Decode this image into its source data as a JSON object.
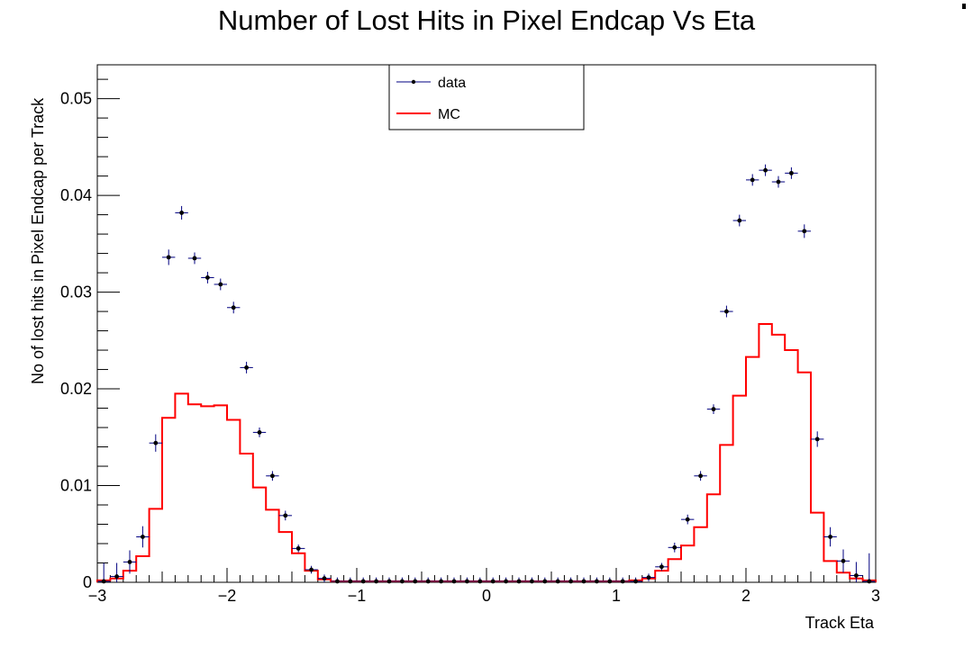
{
  "chart_data": {
    "type": "line",
    "title": "Number of Lost Hits in Pixel Endcap Vs Eta",
    "xlabel": "Track Eta",
    "ylabel": "No of lost hits in Pixel Endcap per Track",
    "xlim": [
      -3,
      3
    ],
    "ylim": [
      0,
      0.0535
    ],
    "xticks": [
      -3,
      -2,
      -1,
      0,
      1,
      2,
      3
    ],
    "xtick_labels": [
      "−3",
      "−2",
      "−1",
      "0",
      "1",
      "2",
      "3"
    ],
    "yticks": [
      0,
      0.01,
      0.02,
      0.03,
      0.04,
      0.05
    ],
    "ytick_labels": [
      "0",
      "0.01",
      "0.02",
      "0.03",
      "0.04",
      "0.05"
    ],
    "grid": false,
    "legend_position": "top-center",
    "bin_width": 0.1,
    "bin_centers": [
      -2.95,
      -2.85,
      -2.75,
      -2.65,
      -2.55,
      -2.45,
      -2.35,
      -2.25,
      -2.15,
      -2.05,
      -1.95,
      -1.85,
      -1.75,
      -1.65,
      -1.55,
      -1.45,
      -1.35,
      -1.25,
      -1.15,
      -1.05,
      -0.95,
      -0.85,
      -0.75,
      -0.65,
      -0.55,
      -0.45,
      -0.35,
      -0.25,
      -0.15,
      -0.05,
      0.05,
      0.15,
      0.25,
      0.35,
      0.45,
      0.55,
      0.65,
      0.75,
      0.85,
      0.95,
      1.05,
      1.15,
      1.25,
      1.35,
      1.45,
      1.55,
      1.65,
      1.75,
      1.85,
      1.95,
      2.05,
      2.15,
      2.25,
      2.35,
      2.45,
      2.55,
      2.65,
      2.75,
      2.85,
      2.95
    ],
    "series": [
      {
        "name": "data",
        "style": "markers",
        "color": "#000080",
        "values": [
          0.0001,
          0.0006,
          0.0021,
          0.0047,
          0.0144,
          0.0336,
          0.0382,
          0.0335,
          0.0315,
          0.0308,
          0.0284,
          0.0222,
          0.0155,
          0.011,
          0.0069,
          0.0035,
          0.0013,
          0.0004,
          0.0001,
          0.0001,
          0.0001,
          0.0001,
          0.0001,
          0.0001,
          0.0001,
          0.0001,
          0.0001,
          0.0001,
          0.0001,
          0.0001,
          0.0001,
          0.0001,
          0.0001,
          0.0001,
          0.0001,
          0.0001,
          0.0001,
          0.0001,
          0.0001,
          0.0001,
          0.0001,
          0.0001,
          0.0005,
          0.0016,
          0.0036,
          0.0065,
          0.011,
          0.0179,
          0.028,
          0.0374,
          0.0416,
          0.0426,
          0.0414,
          0.0423,
          0.0363,
          0.0148,
          0.0047,
          0.0022,
          0.0007,
          0.0001
        ],
        "errors": [
          0.0019,
          0.0014,
          0.0012,
          0.0011,
          0.0009,
          0.0008,
          0.0007,
          0.0006,
          0.0006,
          0.0006,
          0.0006,
          0.0006,
          0.0005,
          0.0005,
          0.0005,
          0.0004,
          0.0004,
          0.0004,
          0.0004,
          0.0004,
          0.0004,
          0.0004,
          0.0004,
          0.0004,
          0.0004,
          0.0004,
          0.0004,
          0.0004,
          0.0004,
          0.0004,
          0.0004,
          0.0004,
          0.0004,
          0.0004,
          0.0004,
          0.0004,
          0.0004,
          0.0004,
          0.0004,
          0.0004,
          0.0004,
          0.0004,
          0.0004,
          0.0004,
          0.0005,
          0.0005,
          0.0005,
          0.0005,
          0.0006,
          0.0006,
          0.0006,
          0.0006,
          0.0006,
          0.0006,
          0.0007,
          0.0008,
          0.001,
          0.0012,
          0.0014,
          0.0029
        ]
      },
      {
        "name": "MC",
        "style": "step",
        "color": "#ff0000",
        "values": [
          0.0002,
          0.0004,
          0.0012,
          0.0027,
          0.0076,
          0.017,
          0.0195,
          0.0184,
          0.0182,
          0.0183,
          0.0168,
          0.0133,
          0.0098,
          0.0075,
          0.0052,
          0.003,
          0.0012,
          0.0003,
          0.0001,
          0.0001,
          0.0001,
          0.0001,
          0.0001,
          0.0001,
          0.0001,
          0.0001,
          0.0001,
          0.0001,
          0.0001,
          0.0001,
          0.0001,
          0.0001,
          0.0001,
          0.0001,
          0.0001,
          0.0001,
          0.0001,
          0.0001,
          0.0001,
          0.0001,
          0.0001,
          0.0002,
          0.0004,
          0.0012,
          0.0024,
          0.0038,
          0.0057,
          0.0091,
          0.0142,
          0.0193,
          0.0233,
          0.0267,
          0.0256,
          0.024,
          0.0217,
          0.0072,
          0.0022,
          0.001,
          0.0004,
          0.0002
        ]
      }
    ]
  },
  "legend": [
    {
      "label": "data"
    },
    {
      "label": "MC"
    }
  ]
}
